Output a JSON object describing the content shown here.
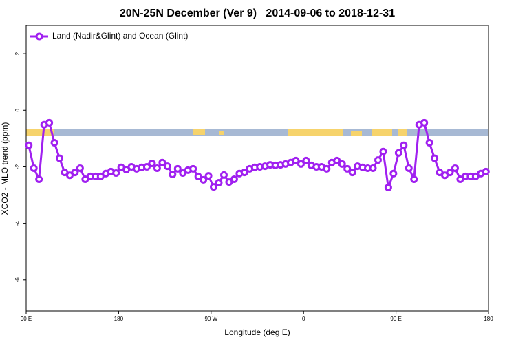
{
  "chart_data": {
    "type": "line",
    "title": "20N-25N December (Ver 9)   2014-09-06 to 2018-12-31",
    "xlabel": "Longitude (deg E)",
    "ylabel": "XCO2 - MLO trend (ppm)",
    "xlim": [
      90,
      540
    ],
    "ylim": [
      -7.1,
      3.0
    ],
    "xticks": [
      {
        "value": 90,
        "label": "90 E"
      },
      {
        "value": 180,
        "label": "180"
      },
      {
        "value": 270,
        "label": "90 W"
      },
      {
        "value": 360,
        "label": "0"
      },
      {
        "value": 450,
        "label": "90 E"
      },
      {
        "value": 540,
        "label": "180"
      }
    ],
    "yticks": [
      -6,
      -4,
      -2,
      0,
      2
    ],
    "legend": "top-left",
    "x": [
      92.5,
      97.5,
      102.5,
      107.5,
      112.5,
      117.5,
      122.5,
      127.5,
      132.5,
      137.5,
      142.5,
      147.5,
      152.5,
      157.5,
      162.5,
      167.5,
      172.5,
      177.5,
      182.5,
      187.5,
      192.5,
      197.5,
      202.5,
      207.5,
      212.5,
      217.5,
      222.5,
      227.5,
      232.5,
      237.5,
      242.5,
      247.5,
      252.5,
      257.5,
      262.5,
      267.5,
      272.5,
      277.5,
      282.5,
      287.5,
      292.5,
      297.5,
      302.5,
      307.5,
      312.5,
      317.5,
      322.5,
      327.5,
      332.5,
      337.5,
      342.5,
      347.5,
      352.5,
      357.5,
      362.5,
      367.5,
      372.5,
      377.5,
      382.5,
      387.5,
      392.5,
      397.5,
      402.5,
      407.5,
      412.5,
      417.5,
      422.5,
      427.5,
      432.5,
      437.5,
      442.5,
      447.5,
      452.5,
      457.5,
      462.5,
      467.5,
      472.5,
      477.5,
      482.5,
      487.5,
      492.5,
      497.5,
      502.5,
      507.5,
      512.5,
      517.5,
      522.5,
      527.5,
      532.5,
      537.5
    ],
    "series": [
      {
        "name": "Land (Nadir&Glint) and Ocean (Glint)",
        "color": "#a020f0",
        "values": [
          -1.24,
          -2.05,
          -2.44,
          -0.51,
          -0.44,
          -1.15,
          -1.7,
          -2.2,
          -2.3,
          -2.2,
          -2.05,
          -2.44,
          -2.34,
          -2.34,
          -2.34,
          -2.24,
          -2.17,
          -2.22,
          -2.02,
          -2.1,
          -2.0,
          -2.07,
          -2.02,
          -2.0,
          -1.88,
          -2.05,
          -1.85,
          -1.98,
          -2.27,
          -2.07,
          -2.22,
          -2.12,
          -2.07,
          -2.34,
          -2.46,
          -2.32,
          -2.71,
          -2.56,
          -2.29,
          -2.54,
          -2.44,
          -2.24,
          -2.2,
          -2.07,
          -2.02,
          -2.0,
          -1.98,
          -1.93,
          -1.95,
          -1.93,
          -1.9,
          -1.85,
          -1.78,
          -1.9,
          -1.78,
          -1.95,
          -2.0,
          -2.0,
          -2.07,
          -1.85,
          -1.78,
          -1.9,
          -2.07,
          -2.2,
          -1.98,
          -2.02,
          -2.05,
          -2.05,
          -1.76,
          -1.46,
          -2.73,
          -2.24,
          -1.51,
          -1.24,
          -2.05,
          -2.44,
          -0.51,
          -0.44,
          -1.15,
          -1.7,
          -2.2,
          -2.3,
          -2.2,
          -2.05,
          -2.44,
          -2.34,
          -2.34,
          -2.34,
          -2.24,
          -2.17
        ]
      }
    ]
  }
}
